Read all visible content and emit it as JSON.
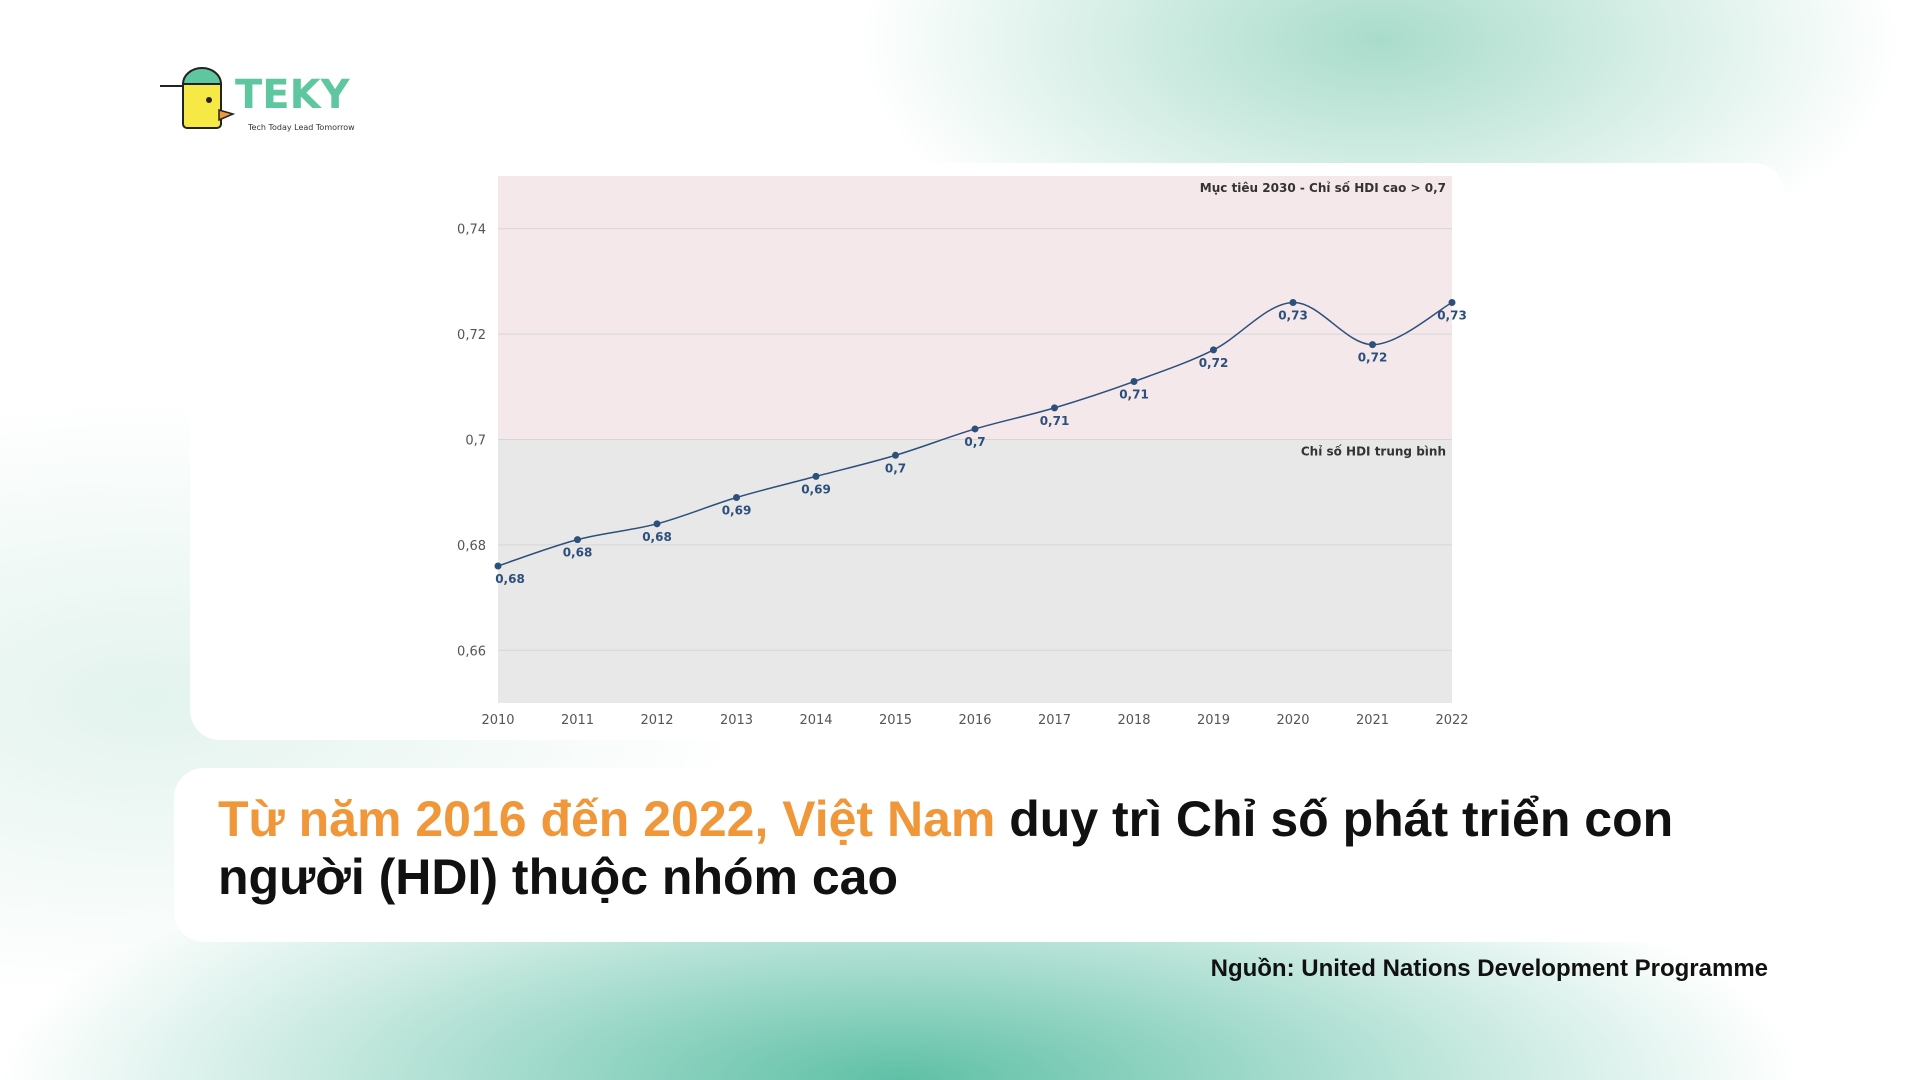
{
  "logo": {
    "name": "TEKY",
    "tagline": "Tech Today Lead Tomorrow"
  },
  "chart_data": {
    "type": "line",
    "x": [
      2010,
      2011,
      2012,
      2013,
      2014,
      2015,
      2016,
      2017,
      2018,
      2019,
      2020,
      2021,
      2022
    ],
    "values": [
      0.676,
      0.681,
      0.684,
      0.689,
      0.693,
      0.697,
      0.702,
      0.706,
      0.711,
      0.717,
      0.726,
      0.718,
      0.726
    ],
    "value_labels": [
      "0,68",
      "0,68",
      "0,68",
      "0,69",
      "0,69",
      "0,7",
      "0,7",
      "0,71",
      "0,71",
      "0,72",
      "0,73",
      "0,72",
      "0,73"
    ],
    "color": "#2c4f7c",
    "xlim": [
      2010,
      2022
    ],
    "xticks": [
      2010,
      2011,
      2012,
      2013,
      2014,
      2015,
      2016,
      2017,
      2018,
      2019,
      2020,
      2021,
      2022
    ],
    "ylim": [
      0.65,
      0.75
    ],
    "yticks": [
      {
        "value": 0.66,
        "label": "0,66"
      },
      {
        "value": 0.68,
        "label": "0,68"
      },
      {
        "value": 0.7,
        "label": "0,7"
      },
      {
        "value": 0.72,
        "label": "0,72"
      },
      {
        "value": 0.74,
        "label": "0,74"
      }
    ],
    "grid": true,
    "bands": [
      {
        "from": 0.7,
        "to": 0.75,
        "label": "Mục tiêu 2030 - Chỉ số HDI cao > 0,7",
        "color": "#f5e8ea"
      },
      {
        "from": 0.65,
        "to": 0.7,
        "label": "Chỉ số HDI trung bình",
        "color": "#e8e8e8"
      }
    ]
  },
  "headline": {
    "highlight": "Từ năm 2016 đến 2022, Việt Nam",
    "rest": "duy trì Chỉ số phát triển con người (HDI) thuộc nhóm cao"
  },
  "source": "Nguồn: United Nations Development Programme"
}
